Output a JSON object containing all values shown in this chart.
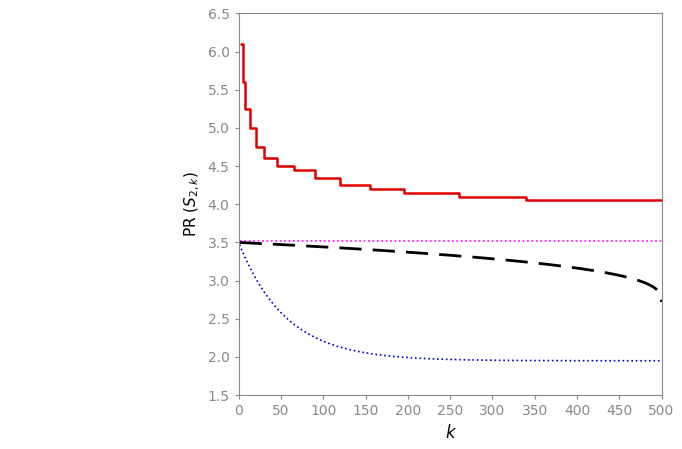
{
  "xlim": [
    0,
    500
  ],
  "ylim": [
    1.5,
    6.5
  ],
  "xlabel": "k",
  "ylabel": "PR $(S_{2,k})$",
  "yticks": [
    1.5,
    2.0,
    2.5,
    3.0,
    3.5,
    4.0,
    4.5,
    5.0,
    5.5,
    6.0,
    6.5
  ],
  "xticks": [
    0,
    50,
    100,
    150,
    200,
    250,
    300,
    350,
    400,
    450,
    500
  ],
  "red_steps": [
    [
      1,
      6.1
    ],
    [
      5,
      5.6
    ],
    [
      8,
      5.25
    ],
    [
      13,
      5.0
    ],
    [
      20,
      4.75
    ],
    [
      30,
      4.6
    ],
    [
      45,
      4.5
    ],
    [
      65,
      4.45
    ],
    [
      90,
      4.35
    ],
    [
      120,
      4.25
    ],
    [
      155,
      4.2
    ],
    [
      195,
      4.15
    ],
    [
      260,
      4.1
    ],
    [
      340,
      4.05
    ],
    [
      500,
      4.05
    ]
  ],
  "magenta_level": 3.52,
  "black_start": 3.5,
  "black_end": 2.72,
  "blue_start": 3.5,
  "blue_end": 1.95,
  "line_colors": {
    "red": "#dd0000",
    "magenta": "#ff00ff",
    "black": "#000000",
    "blue": "#0000cc"
  },
  "background": "#ffffff",
  "tick_color": "#888888",
  "spine_color": "#888888"
}
